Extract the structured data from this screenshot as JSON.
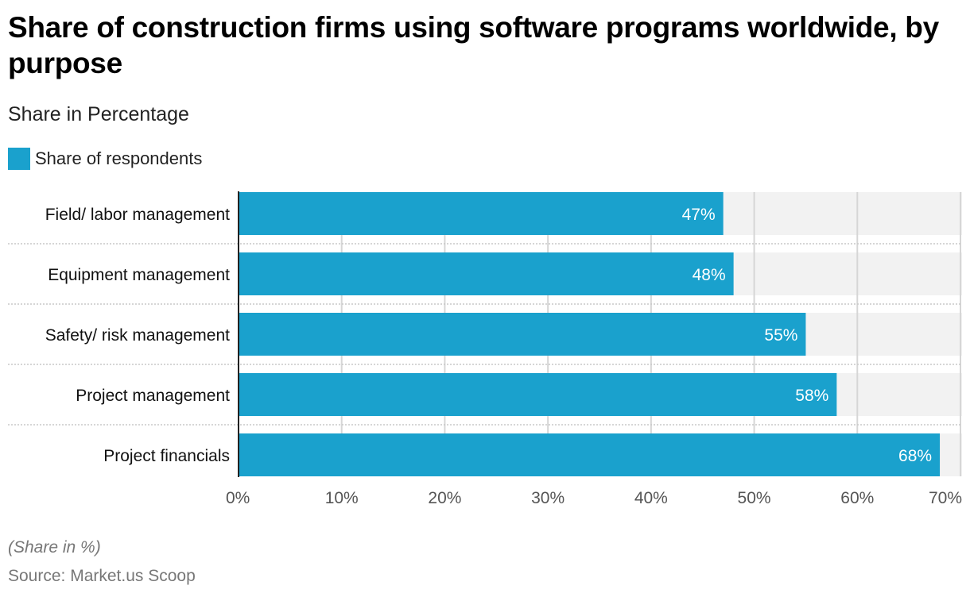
{
  "chart_data": {
    "type": "bar",
    "orientation": "horizontal",
    "title": "Share of construction firms using software programs worldwide, by purpose",
    "subtitle": "Share in Percentage",
    "legend": [
      {
        "label": "Share of respondents",
        "color": "#1aa1cd"
      }
    ],
    "legend_position": "top-left",
    "categories": [
      "Field/ labor management",
      "Equipment management",
      "Safety/ risk management",
      "Project management",
      "Project financials"
    ],
    "series": [
      {
        "name": "Share of respondents",
        "values": [
          47,
          48,
          55,
          58,
          68
        ]
      }
    ],
    "data_labels": [
      "47%",
      "48%",
      "55%",
      "58%",
      "68%"
    ],
    "xlim": [
      0,
      70
    ],
    "x_ticks": [
      0,
      10,
      20,
      30,
      40,
      50,
      60,
      70
    ],
    "x_tick_labels": [
      "0%",
      "10%",
      "20%",
      "30%",
      "40%",
      "50%",
      "60%",
      "70%"
    ],
    "xlabel": "",
    "ylabel": "",
    "grid": true,
    "bar_color": "#1aa1cd",
    "track_color": "#f2f2f2",
    "note": "(Share in %)",
    "source": "Source: Market.us Scoop"
  }
}
